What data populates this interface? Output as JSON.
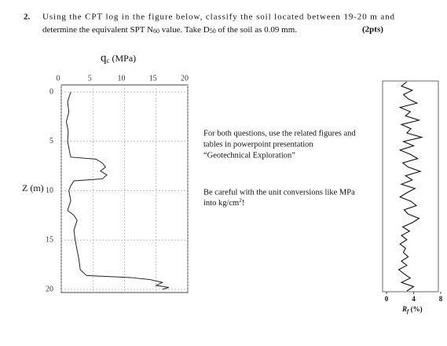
{
  "question": {
    "number": "2.",
    "line1": "Using the CPT log in the figure below, classify the soil located between 19-20 m and",
    "line2a": "determine the equivalent SPT N",
    "sub1": "60",
    "line2b": " value. Take D",
    "sub2": "50",
    "line2c": " of the soil as 0.09 mm.",
    "points": "(2pts)"
  },
  "notes": {
    "line1": "For both questions, use the related figures and",
    "line2": "tables in powerpoint presentation",
    "line3": "“Geotechnical Exploration”",
    "line4": "Be careful with the unit conversions like MPa",
    "line5a": "into kg/cm",
    "sup": "2",
    "line5b": "!"
  },
  "chart_data": [
    {
      "type": "line",
      "title_main": "q",
      "title_sub": "c",
      "title_unit": " (MPa)",
      "y_label": "Z (m)",
      "x": [
        1.5,
        1.0,
        1.2,
        0.8,
        1.1,
        1.0,
        1.3,
        1.5,
        5.5,
        6.5,
        7.0,
        6.2,
        7.2,
        6.5,
        2.0,
        1.5,
        1.2,
        1.5,
        1.0,
        2.0,
        2.5,
        2.0,
        2.2,
        2.5,
        2.8,
        3.0,
        4.0,
        11,
        14,
        16,
        15,
        17,
        16
      ],
      "y": [
        0,
        1,
        2,
        3,
        4,
        5,
        6,
        6.6,
        6.8,
        7.2,
        7.6,
        8.0,
        8.4,
        8.8,
        9.0,
        9.5,
        10,
        11,
        12,
        12.5,
        13,
        14,
        15,
        16,
        17,
        18,
        18.6,
        18.8,
        19,
        19.3,
        19.6,
        19.8,
        20
      ],
      "xlim": [
        0,
        20
      ],
      "xticks": [
        0,
        5,
        10,
        15,
        20
      ],
      "ylim": [
        0,
        20
      ],
      "yticks": [
        0,
        5,
        10,
        15,
        20
      ],
      "grid": true,
      "color": "#222222"
    },
    {
      "type": "line",
      "x_label_main": "R",
      "x_label_sub": "f",
      "x_label_unit": " (%)",
      "values": [
        3.0,
        2.2,
        3.8,
        2.5,
        3.2,
        4.5,
        2.0,
        3.5,
        2.8,
        4.8,
        2.2,
        3.6,
        3.0,
        5.2,
        2.5,
        4.0,
        2.0,
        3.5,
        4.6,
        2.4,
        3.2,
        5.0,
        2.8,
        3.8,
        2.2,
        4.2,
        3.0,
        2.0,
        3.6,
        4.4,
        2.6,
        3.2,
        4.8,
        3.8,
        2.4,
        3.4,
        2.2,
        3.0,
        2.0,
        2.8,
        2.5,
        3.2,
        2.2,
        3.0,
        1.8,
        2.6,
        3.5,
        2.2,
        4.0,
        3.0
      ],
      "xlim": [
        0,
        8
      ],
      "xticks": [
        0,
        4,
        8
      ],
      "color": "#111111"
    }
  ]
}
